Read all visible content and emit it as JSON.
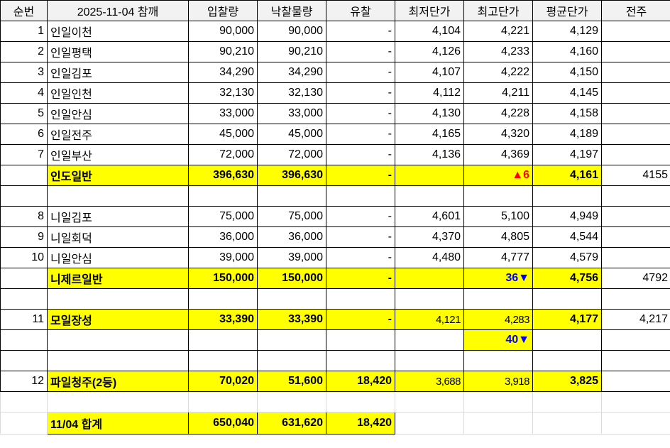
{
  "colors": {
    "highlight": "#ffff00",
    "up": "#ff0000",
    "down": "#0000ff",
    "header_bg": "#f2f2f2"
  },
  "header": [
    "순번",
    "2025-11-04 참깨",
    "입찰량",
    "낙찰물량",
    "유찰",
    "최저단가",
    "최고단가",
    "평균단가",
    "전주"
  ],
  "rows": [
    {
      "type": "item",
      "cells": [
        "1",
        "인일이천",
        "90,000",
        "90,000",
        "-",
        "4,104",
        "4,221",
        "4,129",
        ""
      ]
    },
    {
      "type": "item",
      "cells": [
        "2",
        "인일평택",
        "90,210",
        "90,210",
        "-",
        "4,126",
        "4,233",
        "4,160",
        ""
      ]
    },
    {
      "type": "item",
      "cells": [
        "3",
        "인일김포",
        "34,290",
        "34,290",
        "-",
        "4,107",
        "4,222",
        "4,150",
        ""
      ]
    },
    {
      "type": "item",
      "cells": [
        "4",
        "인일인천",
        "32,130",
        "32,130",
        "-",
        "4,112",
        "4,211",
        "4,145",
        ""
      ]
    },
    {
      "type": "item",
      "cells": [
        "5",
        "인일안심",
        "33,000",
        "33,000",
        "-",
        "4,130",
        "4,228",
        "4,158",
        ""
      ]
    },
    {
      "type": "item",
      "cells": [
        "6",
        "인일전주",
        "45,000",
        "45,000",
        "-",
        "4,165",
        "4,320",
        "4,189",
        ""
      ]
    },
    {
      "type": "item",
      "cells": [
        "7",
        "인일부산",
        "72,000",
        "72,000",
        "-",
        "4,136",
        "4,369",
        "4,197",
        ""
      ]
    },
    {
      "type": "subtotal",
      "trend": "up",
      "cells": [
        "",
        "인도일반",
        "396,630",
        "396,630",
        "-",
        "",
        "▲6",
        "4,161",
        "4155"
      ]
    },
    {
      "type": "blank",
      "cells": [
        "",
        "",
        "",
        "",
        "",
        "",
        "",
        "",
        ""
      ]
    },
    {
      "type": "item",
      "cells": [
        "8",
        "니일김포",
        "75,000",
        "75,000",
        "-",
        "4,601",
        "5,100",
        "4,949",
        ""
      ]
    },
    {
      "type": "item",
      "cells": [
        "9",
        "니일회덕",
        "36,000",
        "36,000",
        "-",
        "4,370",
        "4,805",
        "4,544",
        ""
      ]
    },
    {
      "type": "item",
      "cells": [
        "10",
        "니일안심",
        "39,000",
        "39,000",
        "-",
        "4,480",
        "4,777",
        "4,579",
        ""
      ]
    },
    {
      "type": "subtotal",
      "trend": "down",
      "cells": [
        "",
        "니제르일반",
        "150,000",
        "150,000",
        "-",
        "",
        "36▼",
        "4,756",
        "4792"
      ]
    },
    {
      "type": "blank",
      "cells": [
        "",
        "",
        "",
        "",
        "",
        "",
        "",
        "",
        ""
      ]
    },
    {
      "type": "single",
      "cells": [
        "11",
        "모일장성",
        "33,390",
        "33,390",
        "-",
        "4,121",
        "4,283",
        "4,177",
        "4,217"
      ]
    },
    {
      "type": "note",
      "trend": "down",
      "cells": [
        "",
        "",
        "",
        "",
        "",
        "",
        "40▼",
        "",
        ""
      ]
    },
    {
      "type": "blank",
      "cells": [
        "",
        "",
        "",
        "",
        "",
        "",
        "",
        "",
        ""
      ]
    },
    {
      "type": "single",
      "cells": [
        "12",
        "파일청주(2등)",
        "70,020",
        "51,600",
        "18,420",
        "3,688",
        "3,918",
        "3,825",
        ""
      ]
    },
    {
      "type": "light",
      "cells": [
        "",
        "",
        "",
        "",
        "",
        "",
        "",
        "",
        ""
      ]
    },
    {
      "type": "total",
      "cells": [
        "",
        "11/04 합계",
        "650,040",
        "631,620",
        "18,420",
        "",
        "",
        "",
        ""
      ]
    }
  ]
}
